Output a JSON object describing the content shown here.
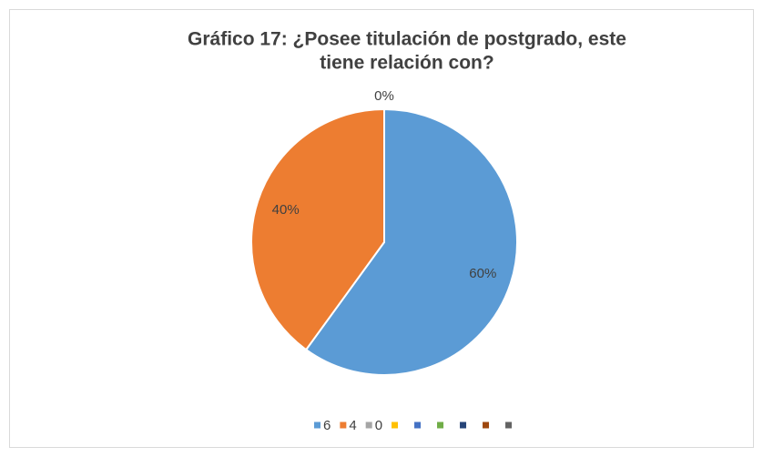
{
  "chart_data": {
    "type": "pie",
    "title": [
      "Gráfico 17: ¿Posee titulación de postgrado, este",
      "tiene relación con?"
    ],
    "categories": [
      "6",
      "4",
      "0",
      null,
      null,
      null,
      null,
      null,
      null
    ],
    "values": [
      60,
      40,
      0,
      0,
      0,
      0,
      0,
      0,
      0
    ],
    "value_labels": [
      "60%",
      "40%",
      "0%",
      null,
      null,
      null,
      null,
      null,
      null
    ],
    "colors": [
      "#5b9bd5",
      "#ed7d31",
      "#a5a5a5",
      "#ffc000",
      "#4472c4",
      "#70ad47",
      "#264478",
      "#9e480e",
      "#636363"
    ],
    "legend": "bottom"
  }
}
